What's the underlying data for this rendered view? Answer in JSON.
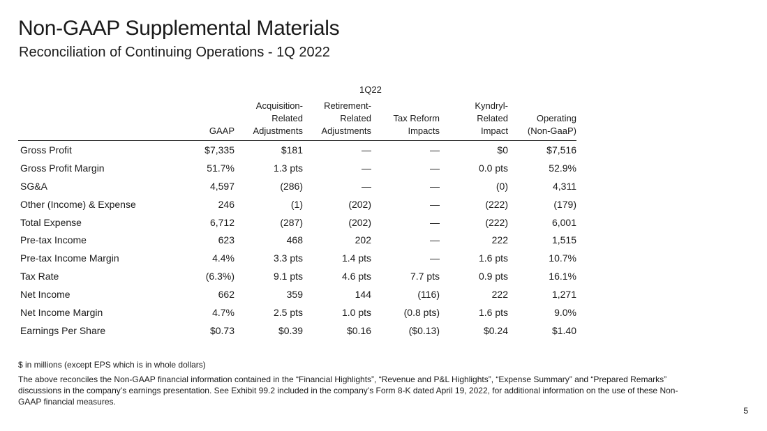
{
  "title": "Non-GAAP Supplemental Materials",
  "subtitle": "Reconciliation of Continuing Operations - 1Q 2022",
  "period": "1Q22",
  "columns": [
    "",
    "GAAP",
    "Acquisition-\nRelated\nAdjustments",
    "Retirement-\nRelated\nAdjustments",
    "Tax Reform\nImpacts",
    "Kyndryl-\nRelated\nImpact",
    "Operating\n(Non-GaaP)"
  ],
  "rows": [
    {
      "label": "Gross Profit",
      "values": [
        "$7,335",
        "$181",
        "—",
        "—",
        "$0",
        "$7,516"
      ]
    },
    {
      "label": "Gross Profit Margin",
      "values": [
        "51.7%",
        "1.3 pts",
        "—",
        "—",
        "0.0 pts",
        "52.9%"
      ]
    },
    {
      "label": "SG&A",
      "values": [
        "4,597",
        "(286)",
        "—",
        "—",
        "(0)",
        "4,311"
      ]
    },
    {
      "label": "Other (Income) & Expense",
      "values": [
        "246",
        "(1)",
        "(202)",
        "—",
        "(222)",
        "(179)"
      ]
    },
    {
      "label": "Total Expense",
      "values": [
        "6,712",
        "(287)",
        "(202)",
        "—",
        "(222)",
        "6,001"
      ]
    },
    {
      "label": "Pre-tax Income",
      "values": [
        "623",
        "468",
        "202",
        "—",
        "222",
        "1,515"
      ]
    },
    {
      "label": "Pre-tax Income Margin",
      "values": [
        "4.4%",
        "3.3 pts",
        "1.4 pts",
        "—",
        "1.6 pts",
        "10.7%"
      ]
    },
    {
      "label": "Tax Rate",
      "values": [
        "(6.3%)",
        "9.1 pts",
        "4.6 pts",
        "7.7 pts",
        "0.9 pts",
        "16.1%"
      ]
    },
    {
      "label": "Net Income",
      "values": [
        "662",
        "359",
        "144",
        "(116)",
        "222",
        "1,271"
      ]
    },
    {
      "label": "Net Income Margin",
      "values": [
        "4.7%",
        "2.5 pts",
        "1.0 pts",
        "(0.8 pts)",
        "1.6 pts",
        "9.0%"
      ]
    },
    {
      "label": "Earnings Per Share",
      "values": [
        "$0.73",
        "$0.39",
        "$0.16",
        "($0.13)",
        "$0.24",
        "$1.40"
      ]
    }
  ],
  "footnotes": {
    "units": "$ in millions (except EPS which is in whole dollars)",
    "text": "The above reconciles the Non-GAAP financial information contained in the “Financial Highlights”, “Revenue and P&L Highlights”, “Expense Summary” and “Prepared Remarks” discussions in the company’s earnings presentation. See Exhibit 99.2 included in the company’s Form 8-K dated April 19, 2022, for additional information on the use of these Non-GAAP financial measures."
  },
  "page_number": "5"
}
